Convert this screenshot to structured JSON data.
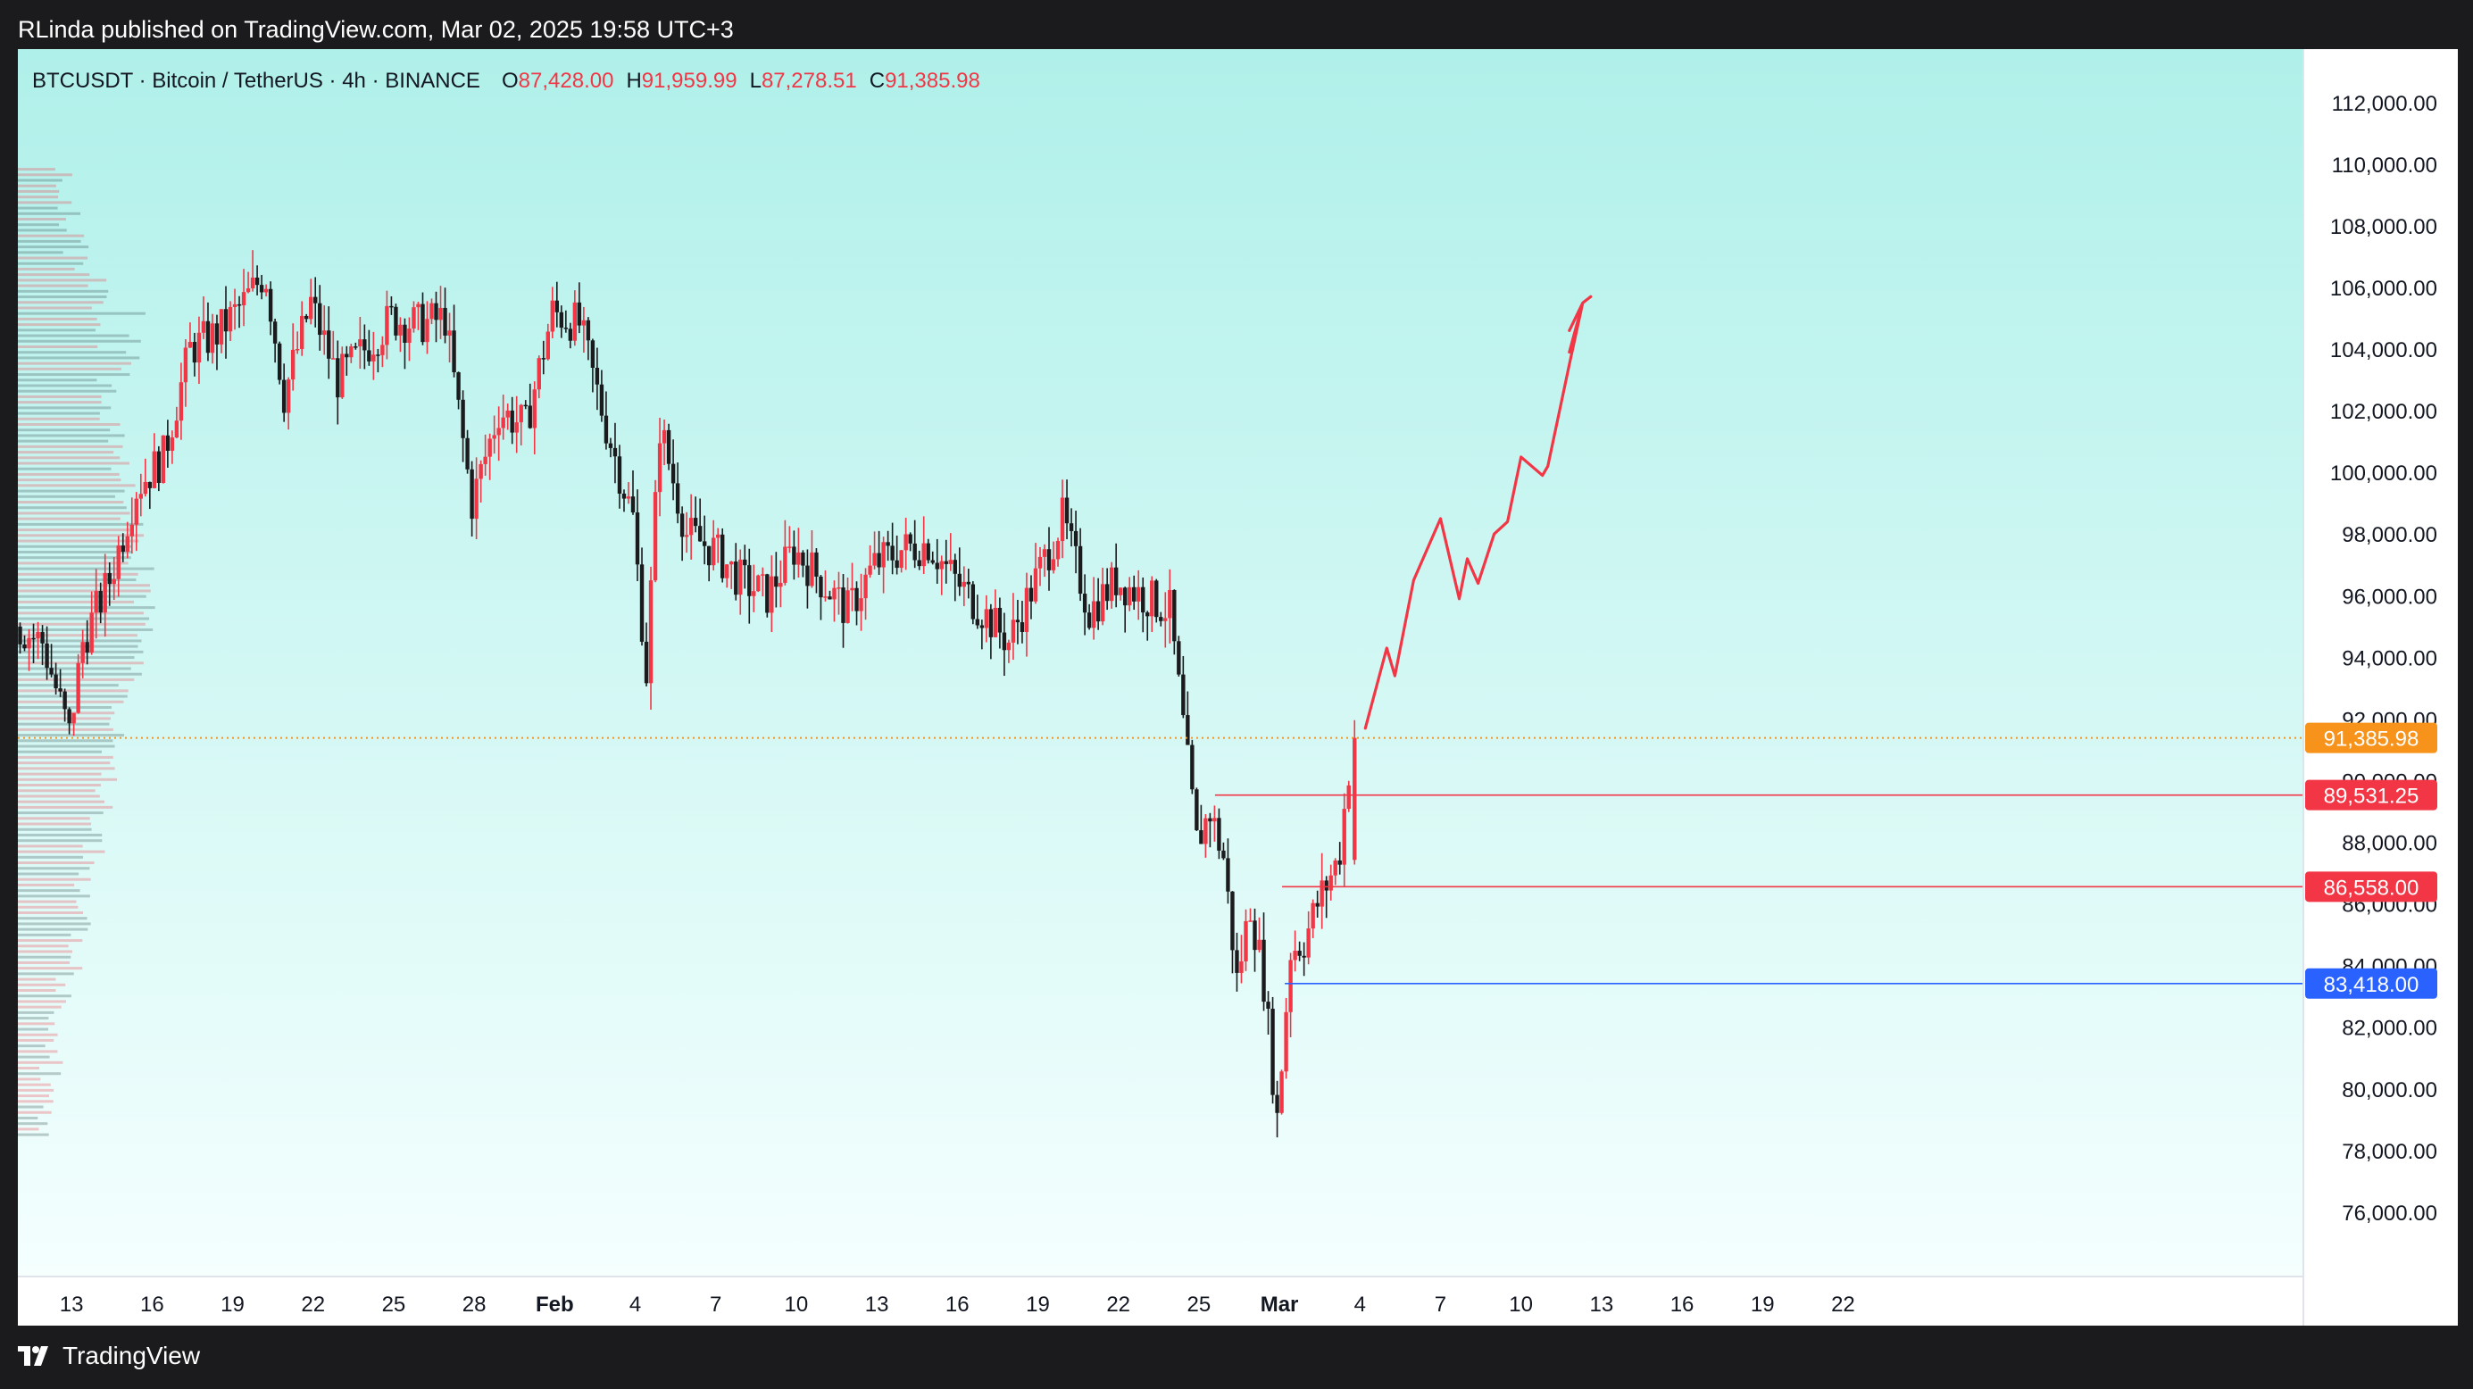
{
  "header": {
    "published_text": "RLinda published on TradingView.com, Mar 02, 2025 19:58 UTC+3"
  },
  "footer": {
    "brand": "TradingView"
  },
  "chart_data": {
    "type": "candlestick",
    "symbol_line": "BTCUSDT · Bitcoin / TetherUS · 4h · BINANCE",
    "ohlc": {
      "o_label": "O",
      "o_value": "87,428.00",
      "h_label": "H",
      "h_value": "91,959.99",
      "l_label": "L",
      "l_value": "87,278.51",
      "c_label": "C",
      "c_value": "91,385.98"
    },
    "ylim": [
      74000,
      113500
    ],
    "y_ticks": [
      112000,
      110000,
      108000,
      106000,
      104000,
      102000,
      100000,
      98000,
      96000,
      94000,
      92000,
      90000,
      88000,
      86000,
      84000,
      82000,
      80000,
      78000,
      76000
    ],
    "y_tick_labels": [
      "112,000.00",
      "110,000.00",
      "108,000.00",
      "106,000.00",
      "104,000.00",
      "102,000.00",
      "100,000.00",
      "98,000.00",
      "96,000.00",
      "94,000.00",
      "92,000.00",
      "90,000.00",
      "88,000.00",
      "86,000.00",
      "84,000.00",
      "82,000.00",
      "80,000.00",
      "78,000.00",
      "76,000.00"
    ],
    "x_day_range": [
      11,
      72.2
    ],
    "x_ticks": [
      {
        "day": 13,
        "label": "13"
      },
      {
        "day": 16,
        "label": "16"
      },
      {
        "day": 19,
        "label": "19"
      },
      {
        "day": 22,
        "label": "22"
      },
      {
        "day": 25,
        "label": "25"
      },
      {
        "day": 28,
        "label": "28"
      },
      {
        "day": 31,
        "label": "Feb"
      },
      {
        "day": 34,
        "label": "4"
      },
      {
        "day": 37,
        "label": "7"
      },
      {
        "day": 40,
        "label": "10"
      },
      {
        "day": 43,
        "label": "13"
      },
      {
        "day": 46,
        "label": "16"
      },
      {
        "day": 49,
        "label": "19"
      },
      {
        "day": 52,
        "label": "22"
      },
      {
        "day": 55,
        "label": "25"
      },
      {
        "day": 58,
        "label": "Mar"
      },
      {
        "day": 61,
        "label": "4"
      },
      {
        "day": 64,
        "label": "7"
      },
      {
        "day": 67,
        "label": "10"
      },
      {
        "day": 70,
        "label": "13"
      },
      {
        "day": 73,
        "label": "16"
      },
      {
        "day": 76,
        "label": "19"
      },
      {
        "day": 79,
        "label": "22"
      }
    ],
    "price_path": [
      [
        11,
        95000
      ],
      [
        12,
        94500
      ],
      [
        13,
        91500
      ],
      [
        13.5,
        94500
      ],
      [
        14.5,
        96500
      ],
      [
        15.5,
        99500
      ],
      [
        16.5,
        100500
      ],
      [
        17.5,
        104000
      ],
      [
        18.5,
        104500
      ],
      [
        19.5,
        105500
      ],
      [
        20.3,
        106500
      ],
      [
        21,
        102500
      ],
      [
        22,
        105500
      ],
      [
        23,
        103000
      ],
      [
        24,
        104000
      ],
      [
        25,
        105000
      ],
      [
        26,
        104800
      ],
      [
        27,
        105000
      ],
      [
        28,
        99000
      ],
      [
        29,
        102000
      ],
      [
        30,
        101500
      ],
      [
        31,
        105200
      ],
      [
        32,
        104800
      ],
      [
        33,
        101500
      ],
      [
        34,
        98500
      ],
      [
        34.5,
        93500
      ],
      [
        35,
        101500
      ],
      [
        36,
        98000
      ],
      [
        37,
        97500
      ],
      [
        38,
        96500
      ],
      [
        39,
        96000
      ],
      [
        40,
        97500
      ],
      [
        41,
        96500
      ],
      [
        42,
        95500
      ],
      [
        43,
        97000
      ],
      [
        44,
        97500
      ],
      [
        45,
        97700
      ],
      [
        46,
        96500
      ],
      [
        47,
        95500
      ],
      [
        48,
        94500
      ],
      [
        49,
        96500
      ],
      [
        50,
        98500
      ],
      [
        51,
        95500
      ],
      [
        52,
        96500
      ],
      [
        53,
        96000
      ],
      [
        54,
        95500
      ],
      [
        54.6,
        91000
      ],
      [
        55,
        88000
      ],
      [
        55.5,
        89000
      ],
      [
        56,
        87500
      ],
      [
        56.5,
        83500
      ],
      [
        57,
        86000
      ],
      [
        57.5,
        83500
      ],
      [
        58,
        79000
      ],
      [
        58.5,
        84500
      ],
      [
        59,
        84800
      ],
      [
        59.5,
        86000
      ],
      [
        60.3,
        87500
      ],
      [
        60.8,
        91386
      ]
    ],
    "levels": [
      {
        "value": 91385.98,
        "label": "91,385.98",
        "color": "#f7931a",
        "style": "dotted"
      },
      {
        "value": 89531.25,
        "label": "89,531.25",
        "color": "#f23645",
        "style": "solid"
      },
      {
        "value": 86558.0,
        "label": "86,558.00",
        "color": "#f23645",
        "style": "solid"
      },
      {
        "value": 83418.0,
        "label": "83,418.00",
        "color": "#2962ff",
        "style": "solid"
      }
    ],
    "forecast_path": [
      [
        61.2,
        91700
      ],
      [
        62,
        94300
      ],
      [
        62.3,
        93400
      ],
      [
        63,
        96500
      ],
      [
        64,
        98500
      ],
      [
        64.7,
        95900
      ],
      [
        65,
        97200
      ],
      [
        65.4,
        96400
      ],
      [
        66,
        98000
      ],
      [
        66.5,
        98400
      ],
      [
        67,
        100500
      ],
      [
        67.8,
        99900
      ],
      [
        68,
        100200
      ],
      [
        68.8,
        103500
      ],
      [
        69.3,
        105500
      ],
      [
        68.8,
        104600
      ],
      [
        69.3,
        105500
      ],
      [
        68.8,
        103900
      ],
      [
        69.3,
        105500
      ],
      [
        69.6,
        105700
      ]
    ],
    "colors": {
      "up": "#f23645",
      "down": "#1b1b1d",
      "bg_top": "#b0f0ea",
      "bg_bottom": "#f4fffe",
      "forecast": "#f23645"
    }
  }
}
